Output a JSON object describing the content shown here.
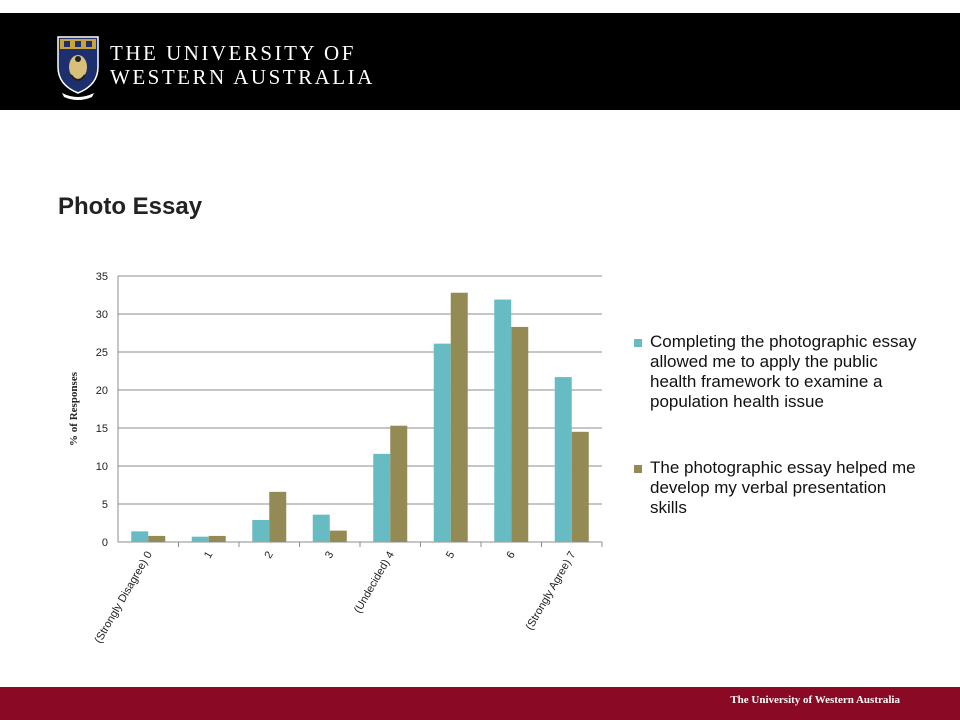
{
  "header": {
    "line1": "THE UNIVERSITY OF",
    "line2": "WESTERN AUSTRALIA"
  },
  "slide": {
    "title": "Photo Essay"
  },
  "footer": {
    "text": "The University of Western Australia"
  },
  "colors": {
    "series1": "#67bcc4",
    "series2": "#948a54",
    "footer": "#8a0a25",
    "header": "#000000"
  },
  "chart_data": {
    "type": "bar",
    "categories": [
      "(Strongly Disagree) 0",
      "1",
      "2",
      "3",
      "(Undecided) 4",
      "5",
      "6",
      "(Strongly Agree) 7"
    ],
    "series": [
      {
        "name": "Completing the photographic essay allowed me to apply the public health framework to examine a population health issue",
        "values": [
          1.4,
          0.7,
          2.9,
          3.6,
          11.6,
          26.1,
          31.9,
          21.7
        ],
        "color": "#67bcc4"
      },
      {
        "name": "The photographic essay helped me develop my verbal presentation skills",
        "values": [
          0.8,
          0.8,
          6.6,
          1.5,
          15.3,
          32.8,
          28.3,
          14.5
        ],
        "color": "#948a54"
      }
    ],
    "ylabel": "% of Responses",
    "xlabel": "",
    "ylim": [
      0,
      35
    ],
    "yticks": [
      0,
      5,
      10,
      15,
      20,
      25,
      30,
      35
    ],
    "grid": true,
    "legend_position": "right"
  }
}
